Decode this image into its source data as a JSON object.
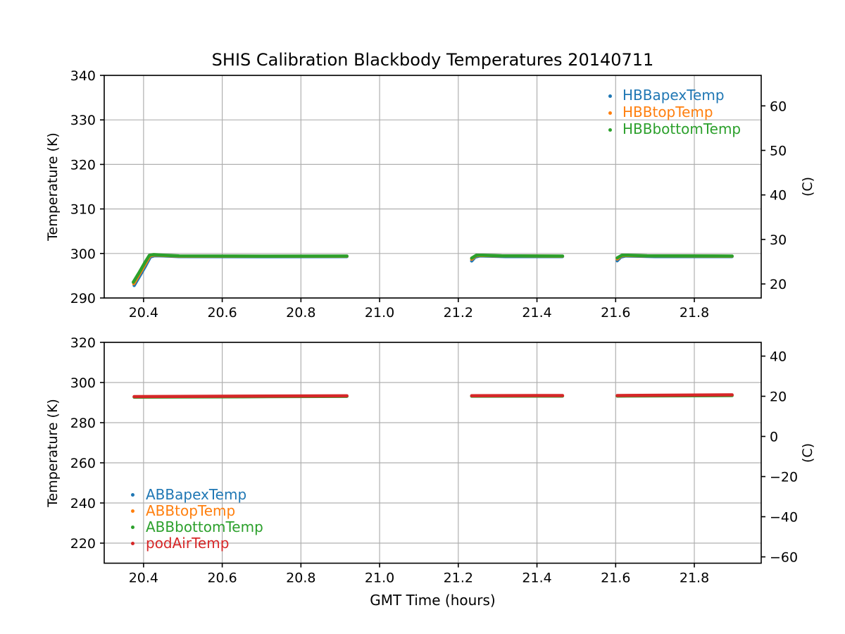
{
  "figure": {
    "title": "SHIS Calibration Blackbody Temperatures 20140711",
    "xlabel": "GMT Time (hours)",
    "grid_color": "#b0b0b0",
    "axis_color": "#000000",
    "background": "#ffffff"
  },
  "chart_data": [
    {
      "type": "scatter",
      "ylabel": "Temperature (K)",
      "ylabel_right": "(C)",
      "xlim": [
        20.3,
        21.97
      ],
      "ylim": [
        290,
        340
      ],
      "xticks": [
        20.4,
        20.6,
        20.8,
        21.0,
        21.2,
        21.4,
        21.6,
        21.8
      ],
      "yticks": [
        290,
        300,
        310,
        320,
        330,
        340
      ],
      "yticks_right": [
        {
          "label": "20",
          "c": 20
        },
        {
          "label": "30",
          "c": 30
        },
        {
          "label": "40",
          "c": 40
        },
        {
          "label": "50",
          "c": 50
        },
        {
          "label": "60",
          "c": 60
        }
      ],
      "grid": true,
      "legend": {
        "loc": "upper right",
        "entries": [
          "HBBapexTemp",
          "HBBtopTemp",
          "HBBbottomTemp"
        ]
      },
      "series": [
        {
          "name": "HBBapexTemp",
          "color": "#1f77b4",
          "linewidth": 4.5,
          "segments": [
            [
              [
                20.376,
                292.8
              ],
              [
                20.39,
                294.9
              ],
              [
                20.405,
                297.2
              ],
              [
                20.417,
                299.2
              ],
              [
                20.428,
                299.5
              ],
              [
                20.45,
                299.45
              ],
              [
                20.49,
                299.3
              ],
              [
                20.7,
                299.28
              ],
              [
                20.917,
                299.3
              ]
            ],
            [
              [
                21.234,
                298.3
              ],
              [
                21.243,
                299.2
              ],
              [
                21.255,
                299.45
              ],
              [
                21.28,
                299.4
              ],
              [
                21.32,
                299.3
              ],
              [
                21.465,
                299.3
              ]
            ],
            [
              [
                21.604,
                298.35
              ],
              [
                21.613,
                299.2
              ],
              [
                21.625,
                299.45
              ],
              [
                21.65,
                299.4
              ],
              [
                21.7,
                299.3
              ],
              [
                21.896,
                299.3
              ]
            ]
          ]
        },
        {
          "name": "HBBtopTemp",
          "color": "#ff7f0e",
          "linewidth": 4.5,
          "segments": [
            [
              [
                20.375,
                293.2
              ],
              [
                20.389,
                295.3
              ],
              [
                20.404,
                297.6
              ],
              [
                20.416,
                299.45
              ],
              [
                20.427,
                299.65
              ],
              [
                20.45,
                299.55
              ],
              [
                20.49,
                299.4
              ],
              [
                20.7,
                299.36
              ],
              [
                20.917,
                299.38
              ]
            ],
            [
              [
                21.234,
                298.7
              ],
              [
                21.245,
                299.5
              ],
              [
                21.26,
                299.55
              ],
              [
                21.3,
                299.45
              ],
              [
                21.465,
                299.38
              ]
            ],
            [
              [
                21.604,
                298.75
              ],
              [
                21.615,
                299.5
              ],
              [
                21.63,
                299.55
              ],
              [
                21.67,
                299.45
              ],
              [
                21.896,
                299.38
              ]
            ]
          ]
        },
        {
          "name": "HBBbottomTemp",
          "color": "#2ca02c",
          "linewidth": 4.5,
          "segments": [
            [
              [
                20.374,
                293.55
              ],
              [
                20.388,
                295.6
              ],
              [
                20.403,
                297.9
              ],
              [
                20.415,
                299.6
              ],
              [
                20.426,
                299.75
              ],
              [
                20.45,
                299.62
              ],
              [
                20.49,
                299.45
              ],
              [
                20.7,
                299.4
              ],
              [
                20.917,
                299.42
              ]
            ],
            [
              [
                21.234,
                298.95
              ],
              [
                21.246,
                299.6
              ],
              [
                21.262,
                299.62
              ],
              [
                21.31,
                299.48
              ],
              [
                21.465,
                299.42
              ]
            ],
            [
              [
                21.604,
                299.0
              ],
              [
                21.616,
                299.6
              ],
              [
                21.632,
                299.62
              ],
              [
                21.68,
                299.48
              ],
              [
                21.896,
                299.42
              ]
            ]
          ]
        }
      ]
    },
    {
      "type": "scatter",
      "ylabel": "Temperature (K)",
      "ylabel_right": "(C)",
      "xlim": [
        20.3,
        21.97
      ],
      "ylim": [
        210,
        320
      ],
      "xticks": [
        20.4,
        20.6,
        20.8,
        21.0,
        21.2,
        21.4,
        21.6,
        21.8
      ],
      "yticks": [
        220,
        240,
        260,
        280,
        300,
        320
      ],
      "yticks_right": [
        {
          "label": "40",
          "c": 40
        },
        {
          "label": "20",
          "c": 20
        },
        {
          "label": "0",
          "c": 0
        },
        {
          "label": "−20",
          "c": -20
        },
        {
          "label": "−40",
          "c": -40
        },
        {
          "label": "−60",
          "c": -60
        }
      ],
      "grid": true,
      "legend": {
        "loc": "lower left",
        "entries": [
          "ABBapexTemp",
          "ABBtopTemp",
          "ABBbottomTemp",
          "podAirTemp"
        ]
      },
      "series": [
        {
          "name": "ABBapexTemp",
          "color": "#1f77b4",
          "linewidth": 3.5,
          "segments": [
            [
              [
                20.376,
                292.85
              ],
              [
                20.65,
                293.05
              ],
              [
                20.917,
                293.25
              ]
            ],
            [
              [
                21.234,
                293.32
              ],
              [
                21.465,
                293.4
              ]
            ],
            [
              [
                21.604,
                293.38
              ],
              [
                21.896,
                293.62
              ]
            ]
          ]
        },
        {
          "name": "ABBtopTemp",
          "color": "#ff7f0e",
          "linewidth": 3.5,
          "segments": [
            [
              [
                20.376,
                292.8
              ],
              [
                20.65,
                293.0
              ],
              [
                20.917,
                293.2
              ]
            ],
            [
              [
                21.234,
                293.28
              ],
              [
                21.465,
                293.36
              ]
            ],
            [
              [
                21.604,
                293.34
              ],
              [
                21.896,
                293.58
              ]
            ]
          ]
        },
        {
          "name": "ABBbottomTemp",
          "color": "#2ca02c",
          "linewidth": 4.5,
          "segments": [
            [
              [
                20.376,
                292.7
              ],
              [
                20.65,
                292.92
              ],
              [
                20.917,
                293.12
              ]
            ],
            [
              [
                21.234,
                293.18
              ],
              [
                21.465,
                293.26
              ]
            ],
            [
              [
                21.604,
                293.25
              ],
              [
                21.896,
                293.5
              ]
            ]
          ]
        },
        {
          "name": "podAirTemp",
          "color": "#d62728",
          "linewidth": 4.5,
          "segments": [
            [
              [
                20.376,
                292.98
              ],
              [
                20.65,
                293.18
              ],
              [
                20.917,
                293.38
              ]
            ],
            [
              [
                21.234,
                293.45
              ],
              [
                21.465,
                293.52
              ]
            ],
            [
              [
                21.604,
                293.5
              ],
              [
                21.896,
                293.85
              ]
            ]
          ]
        }
      ]
    }
  ]
}
